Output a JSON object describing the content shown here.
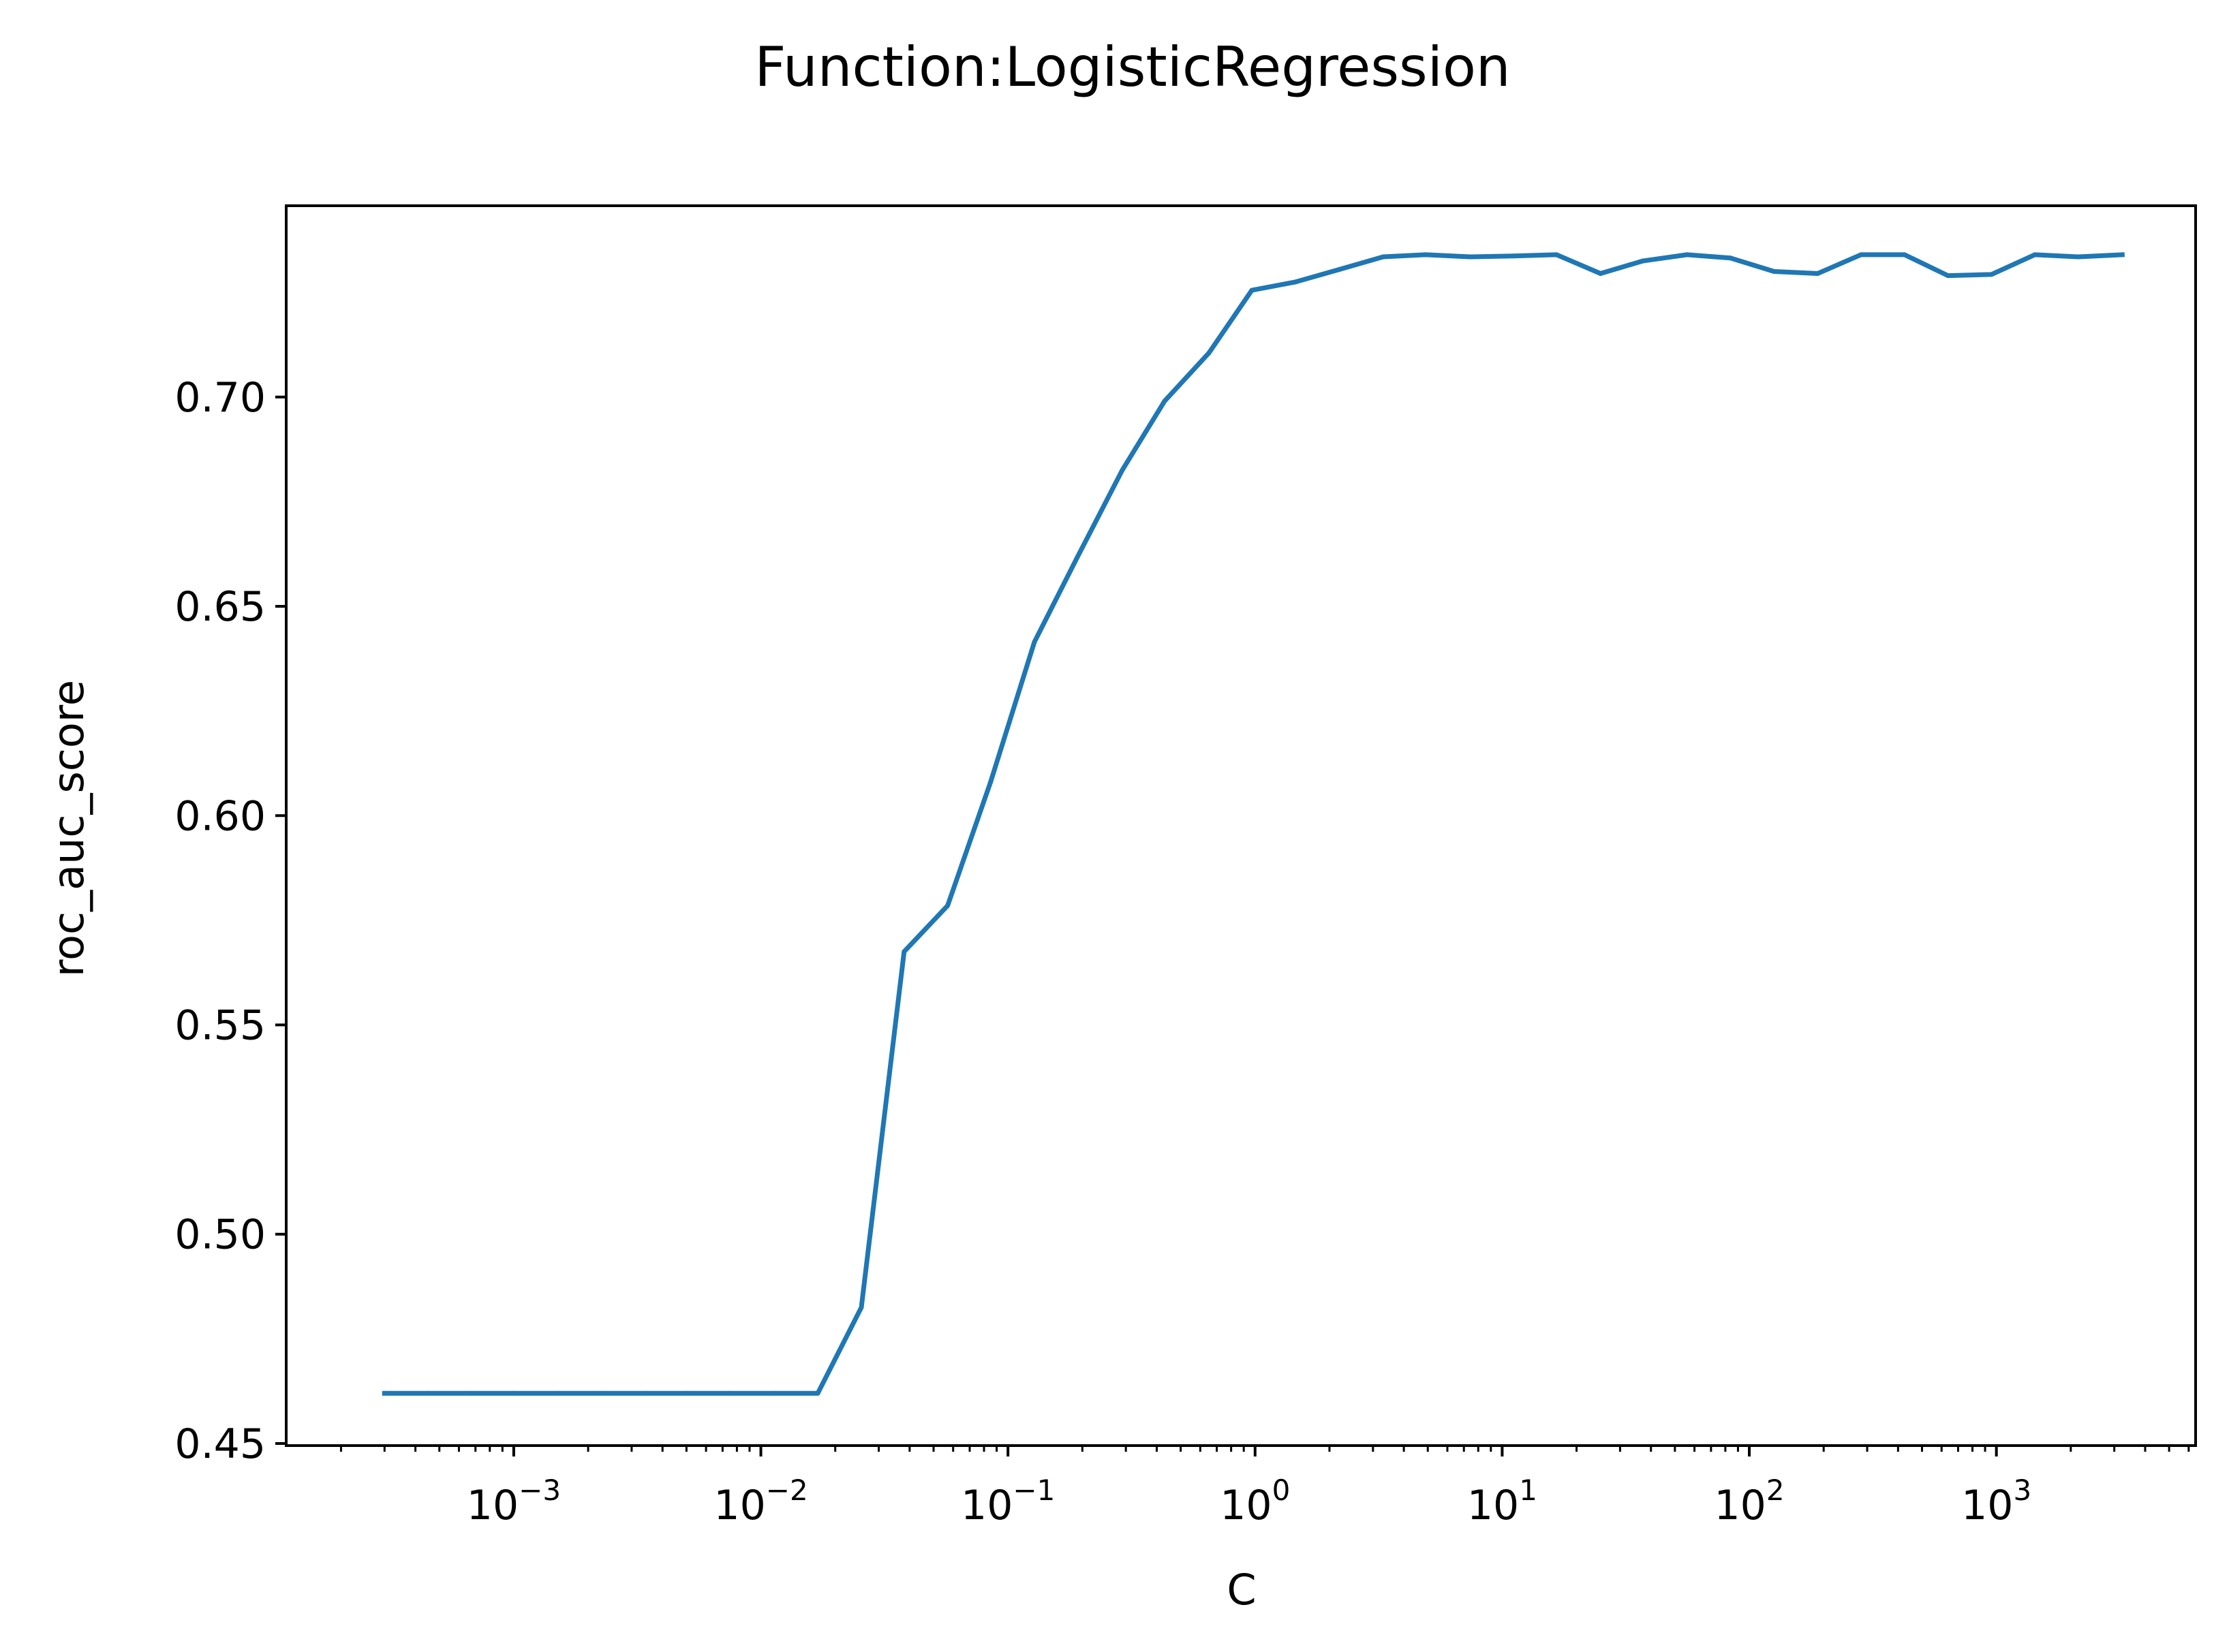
{
  "chart_data": {
    "type": "line",
    "title": "Function:LogisticRegression",
    "xlabel": "C",
    "ylabel": "roc_auc_score",
    "xscale": "log",
    "xlim": [
      0.00012,
      6400
    ],
    "ylim": [
      0.4495,
      0.7457
    ],
    "xticks": [
      {
        "base": "10",
        "exp": "−3",
        "value": 0.001
      },
      {
        "base": "10",
        "exp": "−2",
        "value": 0.01
      },
      {
        "base": "10",
        "exp": "−1",
        "value": 0.1
      },
      {
        "base": "10",
        "exp": "0",
        "value": 1
      },
      {
        "base": "10",
        "exp": "1",
        "value": 10
      },
      {
        "base": "10",
        "exp": "2",
        "value": 100
      },
      {
        "base": "10",
        "exp": "3",
        "value": 1000
      }
    ],
    "yticks": [
      {
        "label": "0.45",
        "value": 0.45
      },
      {
        "label": "0.50",
        "value": 0.5
      },
      {
        "label": "0.55",
        "value": 0.55
      },
      {
        "label": "0.60",
        "value": 0.6
      },
      {
        "label": "0.65",
        "value": 0.65
      },
      {
        "label": "0.70",
        "value": 0.7
      }
    ],
    "grid": false,
    "series": [
      {
        "color": "#1f77b4",
        "x": [
          0.0003,
          0.00045,
          0.00067,
          0.001,
          0.0015,
          0.00225,
          0.0034,
          0.005,
          0.0075,
          0.0113,
          0.017,
          0.0255,
          0.038,
          0.057,
          0.085,
          0.128,
          0.19,
          0.29,
          0.43,
          0.65,
          0.97,
          1.46,
          2.2,
          3.3,
          4.9,
          7.4,
          11.1,
          16.6,
          25,
          37,
          56,
          84,
          126,
          189,
          283,
          425,
          637,
          956,
          1430,
          2150,
          3230
        ],
        "y": [
          0.462,
          0.462,
          0.462,
          0.462,
          0.462,
          0.462,
          0.462,
          0.462,
          0.462,
          0.462,
          0.462,
          0.4825,
          0.5675,
          0.5785,
          0.608,
          0.6415,
          0.6615,
          0.6825,
          0.699,
          0.7105,
          0.7255,
          0.7275,
          0.7305,
          0.7335,
          0.734,
          0.7335,
          0.7337,
          0.734,
          0.7295,
          0.7325,
          0.734,
          0.7332,
          0.73,
          0.7295,
          0.734,
          0.734,
          0.729,
          0.7293,
          0.734,
          0.7335,
          0.734
        ]
      }
    ]
  }
}
